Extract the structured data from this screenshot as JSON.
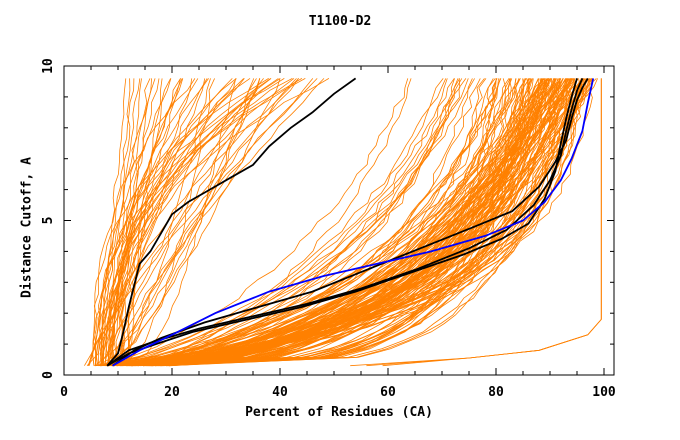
{
  "chart_data": {
    "type": "line",
    "title": "T1100-D2",
    "xlabel": "Percent of Residues (CA)",
    "ylabel": "Distance Cutoff, A",
    "xlim": [
      0,
      100
    ],
    "ylim": [
      0,
      10
    ],
    "x_ticks": [
      "0",
      "20",
      "40",
      "60",
      "80",
      "100"
    ],
    "y_ticks": [
      "0",
      "5",
      "10"
    ],
    "grid": false,
    "colors": {
      "models": "#ff8000",
      "highlight": "#000000",
      "reference": "#0000ff",
      "axes": "#000000"
    },
    "series": [
      {
        "color": "#000000",
        "x": [
          8,
          10,
          11,
          12,
          13,
          14,
          16,
          18,
          20,
          23,
          27,
          31,
          35,
          38,
          42,
          46,
          50,
          54
        ],
        "y": [
          0.3,
          0.7,
          1.4,
          2.2,
          2.9,
          3.6,
          4.0,
          4.6,
          5.2,
          5.6,
          6.0,
          6.4,
          6.8,
          7.4,
          8.0,
          8.5,
          9.1,
          9.6
        ]
      },
      {
        "color": "#000000",
        "x": [
          8,
          12,
          17,
          25,
          35,
          45,
          55,
          65,
          75,
          82,
          87,
          90,
          92,
          93,
          94,
          95,
          96
        ],
        "y": [
          0.3,
          0.8,
          1.1,
          1.5,
          1.9,
          2.3,
          2.8,
          3.4,
          4.1,
          4.7,
          5.5,
          6.3,
          7.1,
          7.9,
          8.6,
          9.2,
          9.6
        ]
      },
      {
        "color": "#000000",
        "x": [
          9,
          13,
          18,
          26,
          36,
          46,
          56,
          66,
          76,
          83,
          88,
          91,
          93,
          94,
          95,
          96,
          97
        ],
        "y": [
          0.3,
          0.8,
          1.2,
          1.7,
          2.2,
          2.7,
          3.4,
          4.1,
          4.8,
          5.3,
          6.1,
          6.9,
          7.6,
          8.3,
          8.9,
          9.3,
          9.6
        ]
      },
      {
        "color": "#000000",
        "x": [
          8,
          12,
          17,
          24,
          34,
          44,
          54,
          64,
          74,
          81,
          86,
          89,
          91,
          92,
          93,
          94,
          95
        ],
        "y": [
          0.3,
          0.7,
          1.0,
          1.4,
          1.8,
          2.2,
          2.7,
          3.3,
          3.9,
          4.4,
          4.9,
          5.7,
          6.6,
          7.5,
          8.3,
          9.0,
          9.6
        ]
      },
      {
        "color": "#0000ff",
        "x": [
          9,
          14,
          20,
          28,
          38,
          48,
          58,
          68,
          78,
          85,
          89,
          92,
          94,
          96,
          97,
          98
        ],
        "y": [
          0.3,
          0.8,
          1.3,
          2.0,
          2.7,
          3.2,
          3.6,
          4.0,
          4.5,
          5.0,
          5.6,
          6.3,
          7.0,
          7.9,
          8.8,
          9.6
        ]
      }
    ]
  }
}
